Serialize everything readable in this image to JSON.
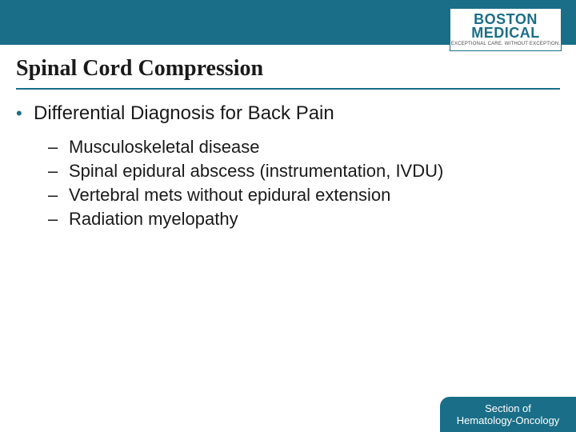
{
  "colors": {
    "brand": "#1a6e87",
    "text": "#1a1a1a",
    "background": "#ffffff"
  },
  "logo": {
    "line1": "BOSTON",
    "line2": "MEDICAL",
    "tagline": "EXCEPTIONAL CARE. WITHOUT EXCEPTION."
  },
  "title": "Spinal Cord Compression",
  "main_bullet": "Differential Diagnosis for Back Pain",
  "sub_bullets": [
    "Musculoskeletal disease",
    "Spinal epidural abscess (instrumentation, IVDU)",
    "Vertebral mets without epidural extension",
    "Radiation myelopathy"
  ],
  "footer": {
    "line1": "Section of",
    "line2": "Hematology-Oncology"
  },
  "typography": {
    "title_fontsize_pt": 28,
    "body_fontsize_pt": 24,
    "sub_fontsize_pt": 22,
    "footer_fontsize_pt": 13
  }
}
